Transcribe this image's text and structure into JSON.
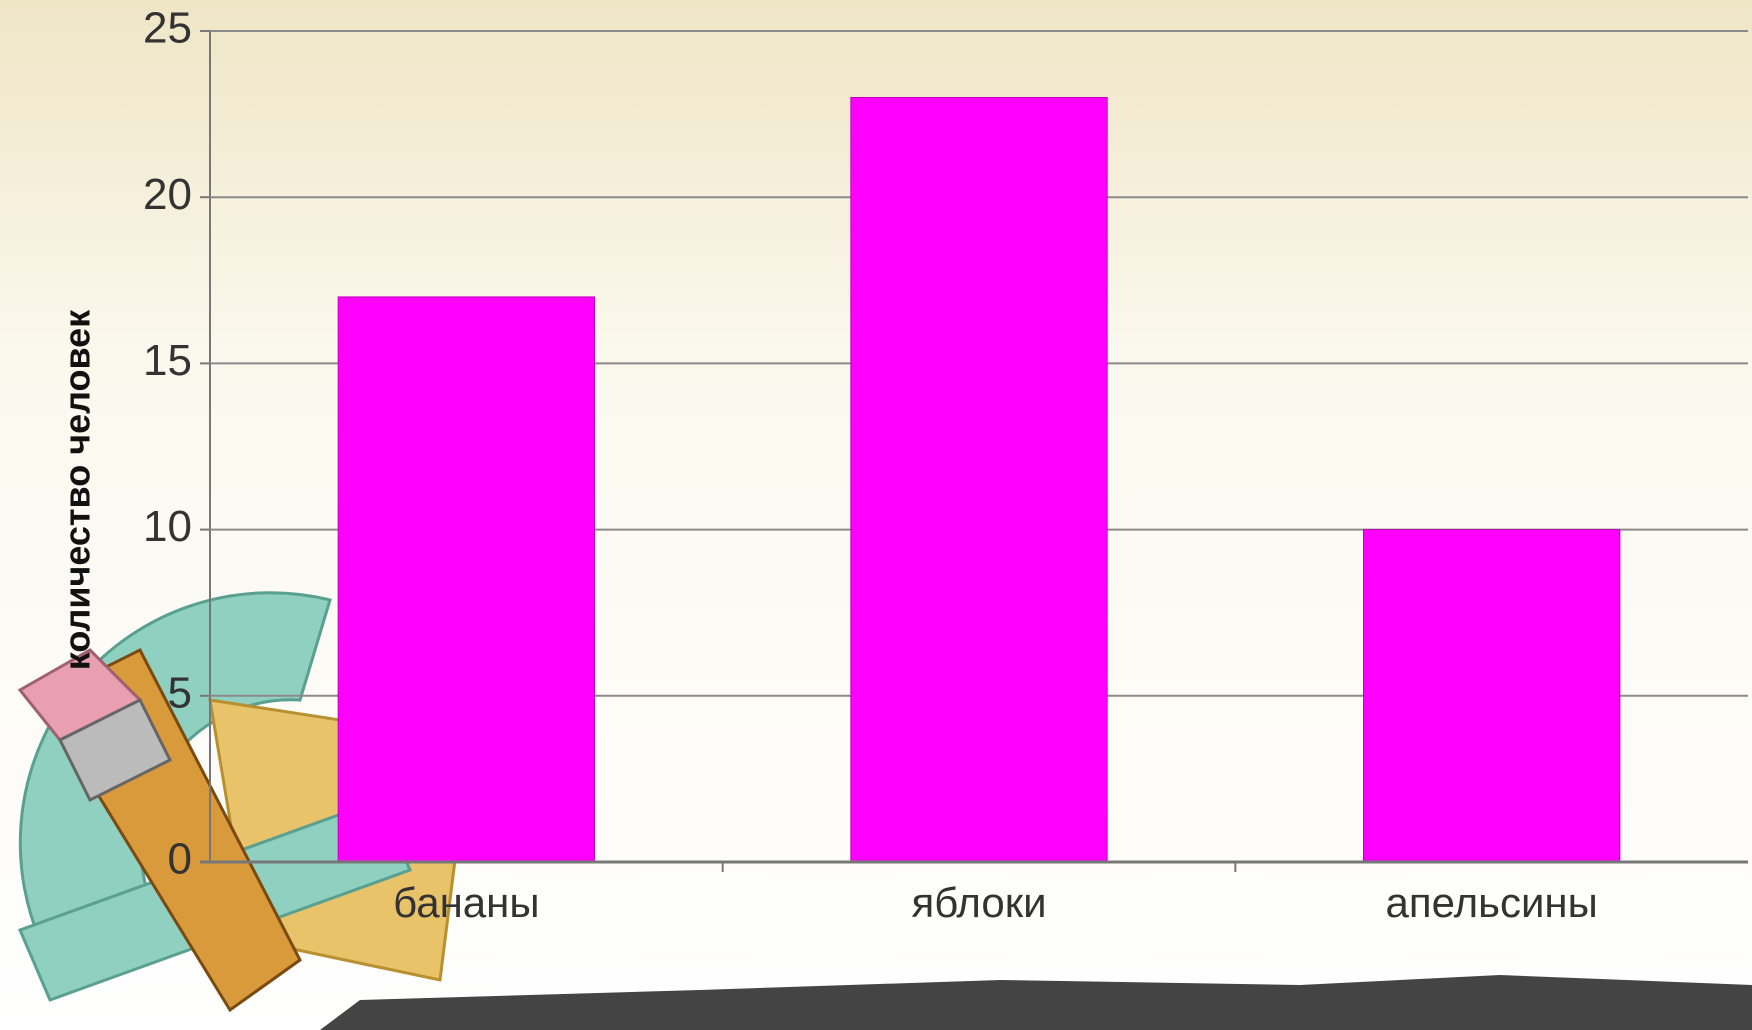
{
  "chart_data": {
    "type": "bar",
    "y_label": "количество человек",
    "categories": [
      "бананы",
      "яблоки",
      "апельсины"
    ],
    "values": [
      17,
      23,
      10
    ],
    "color": "#ff00ff",
    "ylim": [
      0,
      25
    ],
    "yticks": [
      0,
      5,
      10,
      15,
      20,
      25
    ],
    "grid": true
  }
}
